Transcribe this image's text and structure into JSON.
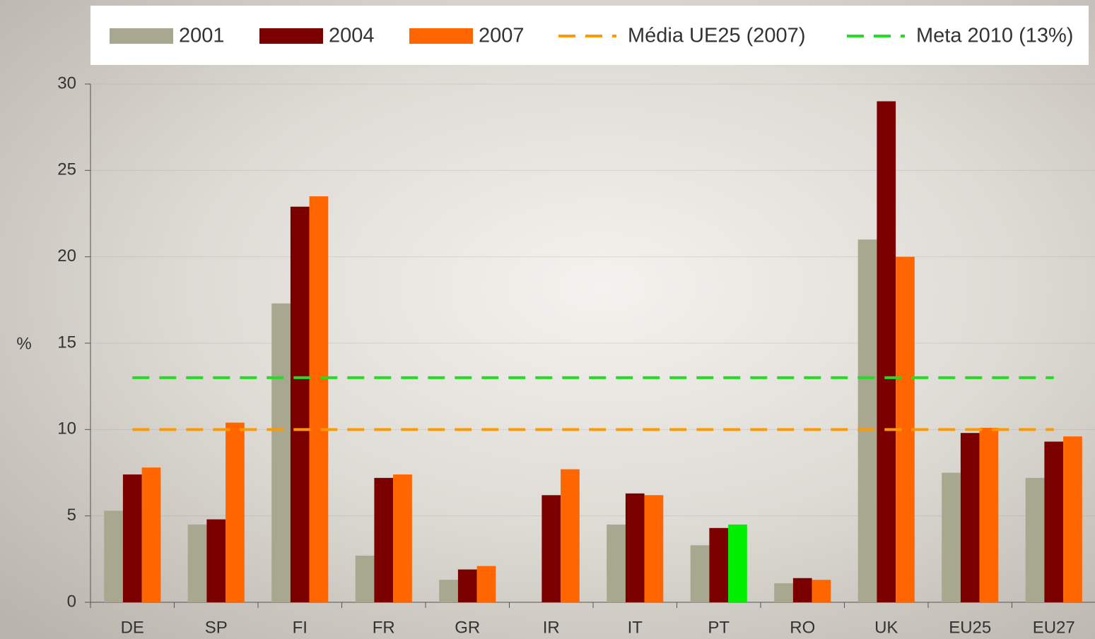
{
  "chart_data": {
    "type": "bar",
    "y_label": "%",
    "categories": [
      "DE",
      "SP",
      "FI",
      "FR",
      "GR",
      "IR",
      "IT",
      "PT",
      "RO",
      "UK",
      "EU25",
      "EU27"
    ],
    "series": [
      {
        "name": "2001",
        "color": "#a8a890",
        "values": [
          5.3,
          4.5,
          17.3,
          2.7,
          1.3,
          null,
          4.5,
          3.3,
          1.1,
          21.0,
          7.5,
          7.2
        ]
      },
      {
        "name": "2004",
        "color": "#7a0000",
        "values": [
          7.4,
          4.8,
          22.9,
          7.2,
          1.9,
          6.2,
          6.3,
          4.3,
          1.4,
          29.0,
          9.8,
          9.3
        ]
      },
      {
        "name": "2007",
        "color": "#ff6600",
        "values": [
          7.8,
          10.4,
          23.5,
          7.4,
          2.1,
          7.7,
          6.2,
          4.5,
          1.3,
          20.0,
          10.1,
          9.6
        ],
        "colors": [
          "#ff6600",
          "#ff6600",
          "#ff6600",
          "#ff6600",
          "#ff6600",
          "#ff6600",
          "#ff6600",
          "#00ee00",
          "#ff6600",
          "#ff6600",
          "#ff6600",
          "#ff6600"
        ]
      }
    ],
    "reference_lines": [
      {
        "name": "Média UE25 (2007)",
        "color": "#ff9900",
        "value": 10
      },
      {
        "name": "Meta 2010 (13%)",
        "color": "#22dd22",
        "value": 13
      }
    ],
    "ylim": [
      0,
      30
    ],
    "yticks": [
      0,
      5,
      10,
      15,
      20,
      25,
      30
    ],
    "grid": true
  }
}
